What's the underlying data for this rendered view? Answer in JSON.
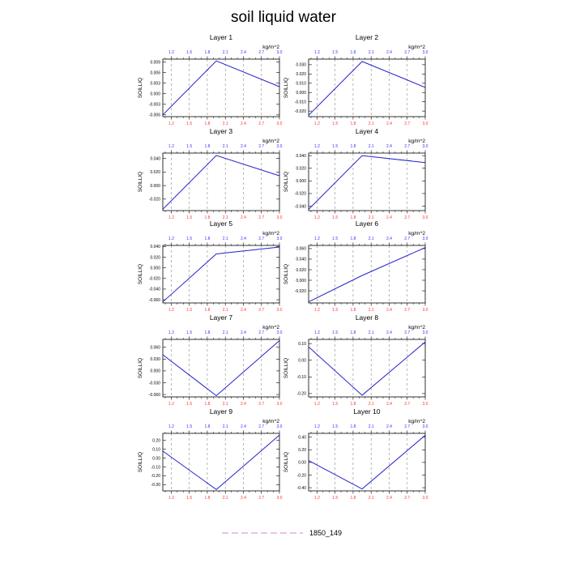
{
  "figure": {
    "title": "soil liquid water",
    "legend": {
      "label": "1850_149",
      "line_color": "#cc88cc"
    }
  },
  "colors": {
    "series_line": "#2222cc",
    "top_axis_labels": "#3333ff",
    "bottom_axis_labels": "#ff3333",
    "reference_lines": "#888888"
  },
  "chart_data": [
    {
      "type": "line",
      "title": "Layer 1",
      "units": "kg/m^2",
      "ylabel": "SOILLIQ",
      "x": [
        1.06,
        1.95,
        3.0
      ],
      "y": [
        -0.006,
        0.0093,
        0.002
      ],
      "ylim": [
        -0.0065,
        0.0098
      ],
      "yticks": [
        -0.006,
        -0.003,
        0.0,
        0.003,
        0.006,
        0.009
      ],
      "ytick_labels": [
        "-0.006",
        "-0.003",
        "0.000",
        "0.003",
        "0.006",
        "0.009"
      ],
      "xlim": [
        1.06,
        3.0
      ],
      "xticks": [
        1.2,
        1.5,
        1.8,
        2.1,
        2.4,
        2.7,
        3.0
      ],
      "xtick_labels": [
        "1.2",
        "1.5",
        "1.8",
        "2.1",
        "2.4",
        "2.7",
        "3.0"
      ],
      "reference_x": [
        1.2,
        1.5,
        1.8,
        2.1,
        2.4,
        2.7
      ],
      "grid": false
    },
    {
      "type": "line",
      "title": "Layer 2",
      "units": "kg/m^2",
      "ylabel": "SOILLIQ",
      "x": [
        1.06,
        1.95,
        3.0
      ],
      "y": [
        -0.0245,
        0.0335,
        0.0055
      ],
      "ylim": [
        -0.026,
        0.036
      ],
      "yticks": [
        -0.02,
        -0.01,
        0.0,
        0.01,
        0.02,
        0.03
      ],
      "ytick_labels": [
        "-0.020",
        "-0.010",
        "0.000",
        "0.010",
        "0.020",
        "0.030"
      ],
      "xlim": [
        1.06,
        3.0
      ],
      "xticks": [
        1.2,
        1.5,
        1.8,
        2.1,
        2.4,
        2.7,
        3.0
      ],
      "xtick_labels": [
        "1.2",
        "1.5",
        "1.8",
        "2.1",
        "2.4",
        "2.7",
        "3.0"
      ],
      "reference_x": [
        1.2,
        1.5,
        1.8,
        2.1,
        2.4,
        2.7
      ],
      "grid": false
    },
    {
      "type": "line",
      "title": "Layer 3",
      "units": "kg/m^2",
      "ylabel": "SOILLIQ",
      "x": [
        1.06,
        1.95,
        3.0
      ],
      "y": [
        -0.035,
        0.0445,
        0.0145
      ],
      "ylim": [
        -0.037,
        0.048
      ],
      "yticks": [
        -0.02,
        0.0,
        0.02,
        0.04
      ],
      "ytick_labels": [
        "-0.020",
        "0.000",
        "0.020",
        "0.040"
      ],
      "xlim": [
        1.06,
        3.0
      ],
      "xticks": [
        1.2,
        1.5,
        1.8,
        2.1,
        2.4,
        2.7,
        3.0
      ],
      "xtick_labels": [
        "1.2",
        "1.5",
        "1.8",
        "2.1",
        "2.4",
        "2.7",
        "3.0"
      ],
      "reference_x": [
        1.2,
        1.5,
        1.8,
        2.1,
        2.4,
        2.7
      ],
      "grid": false
    },
    {
      "type": "line",
      "title": "Layer 4",
      "units": "kg/m^2",
      "ylabel": "SOILLIQ",
      "x": [
        1.06,
        1.95,
        3.0
      ],
      "y": [
        -0.045,
        0.04,
        0.029
      ],
      "ylim": [
        -0.047,
        0.044
      ],
      "yticks": [
        -0.04,
        -0.02,
        0.0,
        0.02,
        0.04
      ],
      "ytick_labels": [
        "-0.040",
        "-0.020",
        "0.000",
        "0.020",
        "0.040"
      ],
      "xlim": [
        1.06,
        3.0
      ],
      "xticks": [
        1.2,
        1.5,
        1.8,
        2.1,
        2.4,
        2.7,
        3.0
      ],
      "xtick_labels": [
        "1.2",
        "1.5",
        "1.8",
        "2.1",
        "2.4",
        "2.7",
        "3.0"
      ],
      "reference_x": [
        1.2,
        1.5,
        1.8,
        2.1,
        2.4,
        2.7
      ],
      "grid": false
    },
    {
      "type": "line",
      "title": "Layer 5",
      "units": "kg/m^2",
      "ylabel": "SOILLIQ",
      "x": [
        1.06,
        1.95,
        3.0
      ],
      "y": [
        -0.064,
        0.026,
        0.039
      ],
      "ylim": [
        -0.066,
        0.042
      ],
      "yticks": [
        -0.06,
        -0.04,
        -0.02,
        0.0,
        0.02,
        0.04
      ],
      "ytick_labels": [
        "-0.060",
        "-0.040",
        "-0.020",
        "0.000",
        "0.020",
        "0.040"
      ],
      "xlim": [
        1.06,
        3.0
      ],
      "xticks": [
        1.2,
        1.5,
        1.8,
        2.1,
        2.4,
        2.7,
        3.0
      ],
      "xtick_labels": [
        "1.2",
        "1.5",
        "1.8",
        "2.1",
        "2.4",
        "2.7",
        "3.0"
      ],
      "reference_x": [
        1.2,
        1.5,
        1.8,
        2.1,
        2.4,
        2.7
      ],
      "grid": false
    },
    {
      "type": "line",
      "title": "Layer 6",
      "units": "kg/m^2",
      "ylabel": "SOILLIQ",
      "x": [
        1.06,
        1.95,
        3.0
      ],
      "y": [
        -0.041,
        0.009,
        0.062
      ],
      "ylim": [
        -0.043,
        0.066
      ],
      "yticks": [
        -0.02,
        0.0,
        0.02,
        0.04,
        0.06
      ],
      "ytick_labels": [
        "-0.020",
        "0.000",
        "0.020",
        "0.040",
        "0.060"
      ],
      "xlim": [
        1.06,
        3.0
      ],
      "xticks": [
        1.2,
        1.5,
        1.8,
        2.1,
        2.4,
        2.7,
        3.0
      ],
      "xtick_labels": [
        "1.2",
        "1.5",
        "1.8",
        "2.1",
        "2.4",
        "2.7",
        "3.0"
      ],
      "reference_x": [
        1.2,
        1.5,
        1.8,
        2.1,
        2.4,
        2.7
      ],
      "grid": false
    },
    {
      "type": "line",
      "title": "Layer 7",
      "units": "kg/m^2",
      "ylabel": "SOILLIQ",
      "x": [
        1.06,
        1.95,
        3.0
      ],
      "y": [
        0.041,
        -0.063,
        0.077
      ],
      "ylim": [
        -0.066,
        0.08
      ],
      "yticks": [
        -0.06,
        -0.03,
        0.0,
        0.03,
        0.06
      ],
      "ytick_labels": [
        "-0.060",
        "-0.030",
        "0.000",
        "0.030",
        "0.060"
      ],
      "xlim": [
        1.06,
        3.0
      ],
      "xticks": [
        1.2,
        1.5,
        1.8,
        2.1,
        2.4,
        2.7,
        3.0
      ],
      "xtick_labels": [
        "1.2",
        "1.5",
        "1.8",
        "2.1",
        "2.4",
        "2.7",
        "3.0"
      ],
      "reference_x": [
        1.2,
        1.5,
        1.8,
        2.1,
        2.4,
        2.7
      ],
      "grid": false
    },
    {
      "type": "line",
      "title": "Layer 8",
      "units": "kg/m^2",
      "ylabel": "SOILLIQ",
      "x": [
        1.06,
        1.95,
        3.0
      ],
      "y": [
        0.08,
        -0.21,
        0.11
      ],
      "ylim": [
        -0.22,
        0.125
      ],
      "yticks": [
        -0.2,
        -0.1,
        0.0,
        0.1
      ],
      "ytick_labels": [
        "-0.20",
        "-0.10",
        "0.00",
        "0.10"
      ],
      "xlim": [
        1.06,
        3.0
      ],
      "xticks": [
        1.2,
        1.5,
        1.8,
        2.1,
        2.4,
        2.7,
        3.0
      ],
      "xtick_labels": [
        "1.2",
        "1.5",
        "1.8",
        "2.1",
        "2.4",
        "2.7",
        "3.0"
      ],
      "reference_x": [
        1.2,
        1.5,
        1.8,
        2.1,
        2.4,
        2.7
      ],
      "grid": false
    },
    {
      "type": "line",
      "title": "Layer 9",
      "units": "kg/m^2",
      "ylabel": "SOILLIQ",
      "x": [
        1.06,
        1.95,
        3.0
      ],
      "y": [
        0.08,
        -0.355,
        0.26
      ],
      "ylim": [
        -0.37,
        0.28
      ],
      "yticks": [
        -0.3,
        -0.2,
        -0.1,
        0.0,
        0.1,
        0.2
      ],
      "ytick_labels": [
        "-0.30",
        "-0.20",
        "-0.10",
        "0.00",
        "0.10",
        "0.20"
      ],
      "xlim": [
        1.06,
        3.0
      ],
      "xticks": [
        1.2,
        1.5,
        1.8,
        2.1,
        2.4,
        2.7,
        3.0
      ],
      "xtick_labels": [
        "1.2",
        "1.5",
        "1.8",
        "2.1",
        "2.4",
        "2.7",
        "3.0"
      ],
      "reference_x": [
        1.2,
        1.5,
        1.8,
        2.1,
        2.4,
        2.7
      ],
      "grid": false
    },
    {
      "type": "line",
      "title": "Layer 10",
      "units": "kg/m^2",
      "ylabel": "SOILLIQ",
      "x": [
        1.06,
        1.95,
        3.0
      ],
      "y": [
        0.03,
        -0.42,
        0.43
      ],
      "ylim": [
        -0.45,
        0.46
      ],
      "yticks": [
        -0.4,
        -0.2,
        0.0,
        0.2,
        0.4
      ],
      "ytick_labels": [
        "-0.40",
        "-0.20",
        "0.00",
        "0.20",
        "0.40"
      ],
      "xlim": [
        1.06,
        3.0
      ],
      "xticks": [
        1.2,
        1.5,
        1.8,
        2.1,
        2.4,
        2.7,
        3.0
      ],
      "xtick_labels": [
        "1.2",
        "1.5",
        "1.8",
        "2.1",
        "2.4",
        "2.7",
        "3.0"
      ],
      "reference_x": [
        1.2,
        1.5,
        1.8,
        2.1,
        2.4,
        2.7
      ],
      "grid": false
    }
  ]
}
